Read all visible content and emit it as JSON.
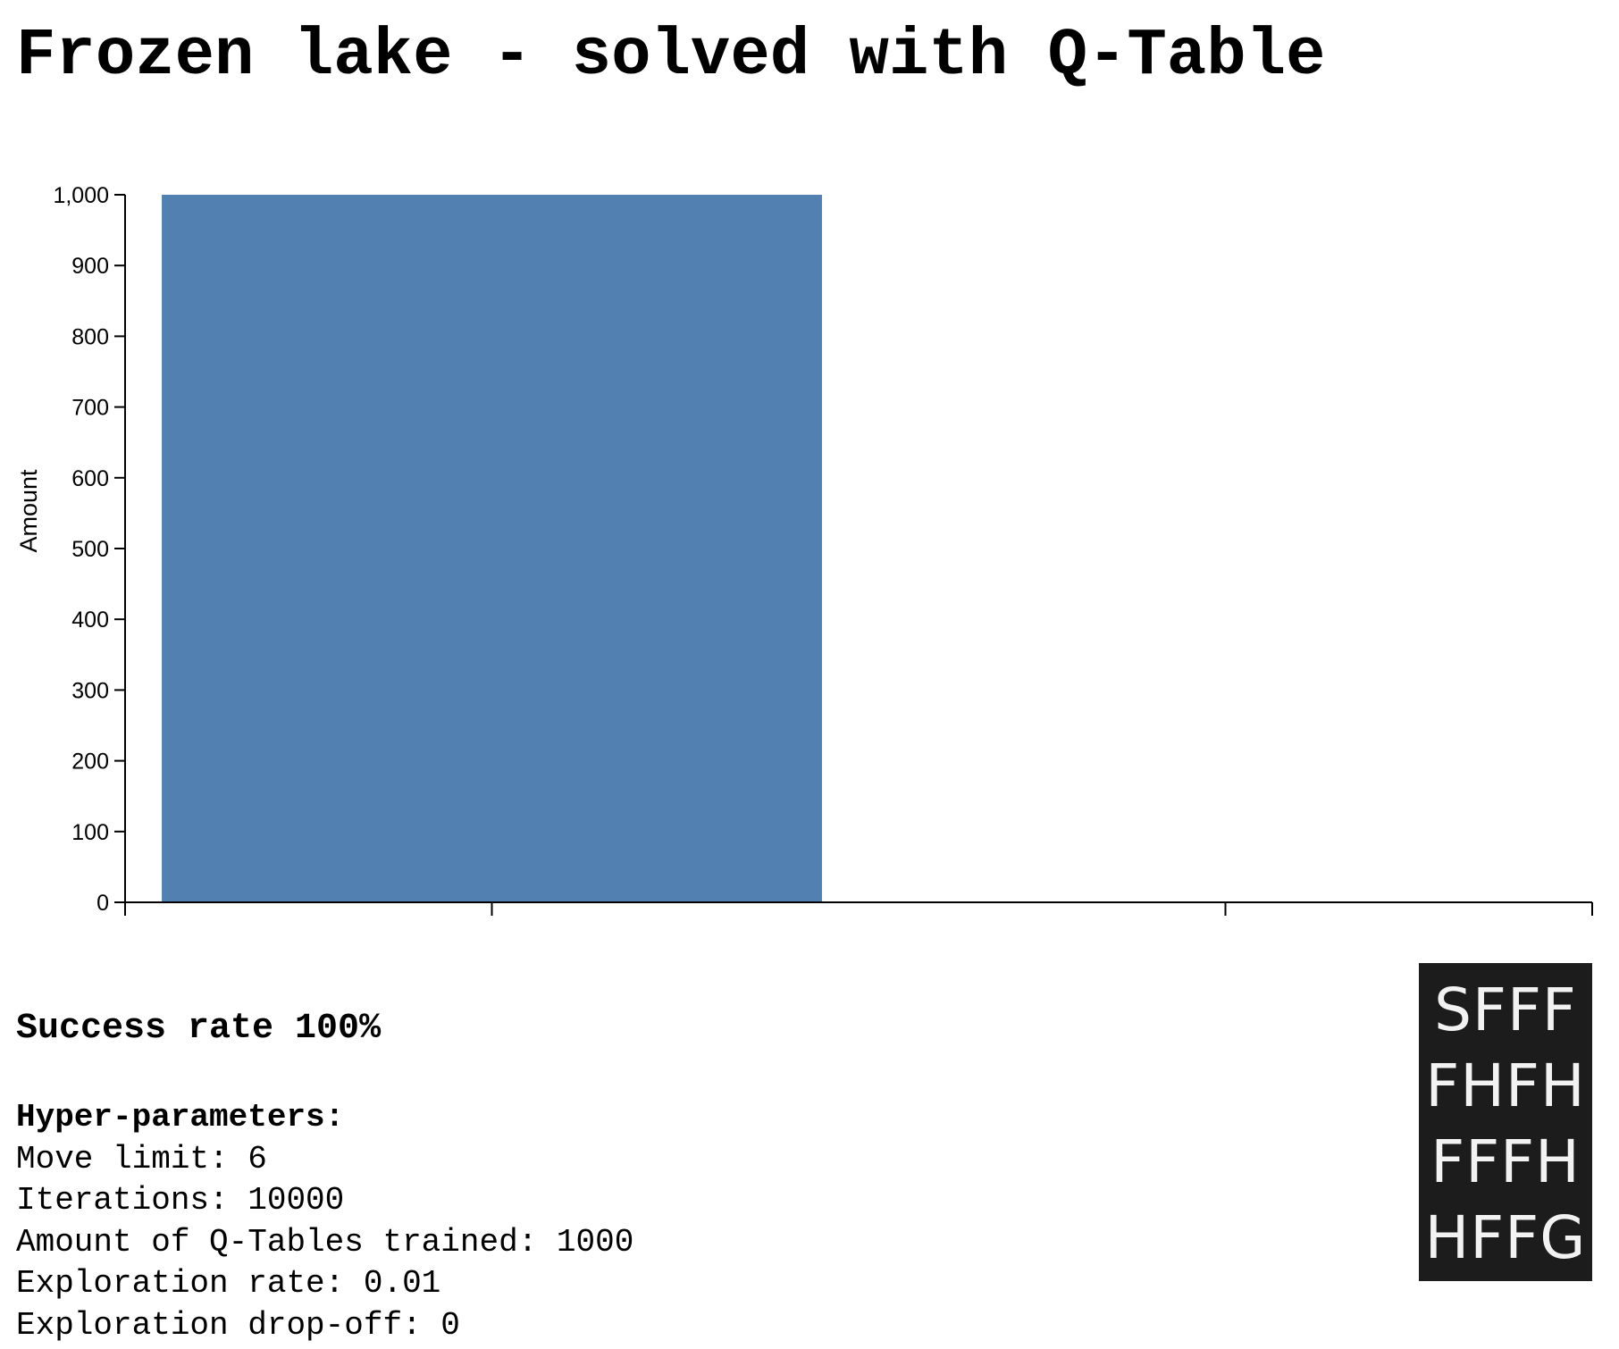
{
  "title": "Frozen lake - solved with Q-Table",
  "chart_data": {
    "type": "bar",
    "categories": [
      "",
      ""
    ],
    "values": [
      1000,
      0
    ],
    "ylabel": "Amount",
    "xlabel": "",
    "ylim": [
      0,
      1000
    ],
    "yticks": [
      0,
      100,
      200,
      300,
      400,
      500,
      600,
      700,
      800,
      900,
      1000
    ],
    "ytick_labels": [
      "0",
      "100",
      "200",
      "300",
      "400",
      "500",
      "600",
      "700",
      "800",
      "900",
      "1,000"
    ],
    "bar_color": "#5280b0",
    "grid": false,
    "legend": "none"
  },
  "results": {
    "success_rate": "Success rate 100%"
  },
  "hyper_parameters": {
    "heading": "Hyper-parameters:",
    "items": [
      "Move limit: 6",
      "Iterations: 10000",
      "Amount of Q-Tables trained: 1000",
      "Exploration rate: 0.01",
      "Exploration drop-off: 0"
    ]
  },
  "lake_map": {
    "rows": [
      "SFFF",
      "FHFH",
      "FFFH",
      "HFFG"
    ]
  }
}
